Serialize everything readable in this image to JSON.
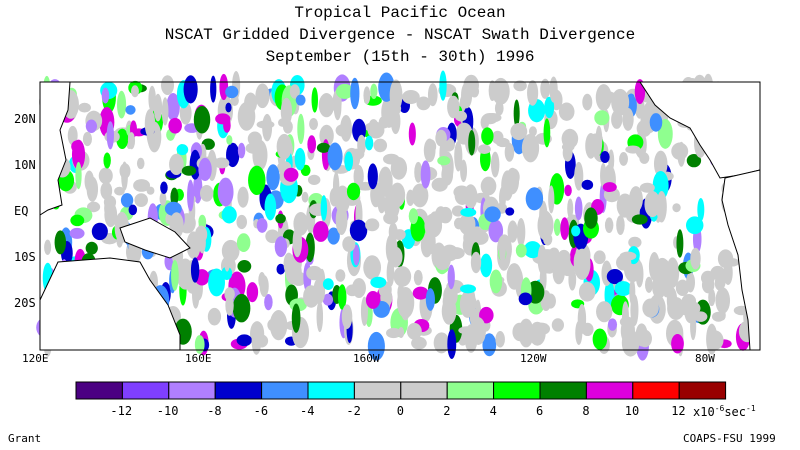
{
  "title": {
    "line1": "Tropical Pacific Ocean",
    "line2": "NSCAT Gridded Divergence - NSCAT Swath Divergence",
    "line3": "September (15th - 30th) 1996"
  },
  "lat_labels": [
    "20N",
    "10N",
    "EQ",
    "10S",
    "20S"
  ],
  "lon_labels": [
    "120E",
    "160E",
    "160W",
    "120W",
    "80W"
  ],
  "colorbar": {
    "colors": [
      "#4b0082",
      "#7f3fff",
      "#b07fff",
      "#0000cd",
      "#3f8fff",
      "#00ffff",
      "#cccccc",
      "#cccccc",
      "#8fff8f",
      "#00ff00",
      "#008000",
      "#dd00dd",
      "#ff0000",
      "#990000"
    ],
    "tick_labels": [
      "-12",
      "-10",
      "-8",
      "-6",
      "-4",
      "-2",
      "0",
      "2",
      "4",
      "6",
      "8",
      "10",
      "12"
    ],
    "units_base": "x10",
    "units_exp": "-6",
    "units_tail": "sec",
    "units_tail_exp": "-1"
  },
  "footer": {
    "left": "Grant",
    "right": "COAPS-FSU 1999"
  }
}
